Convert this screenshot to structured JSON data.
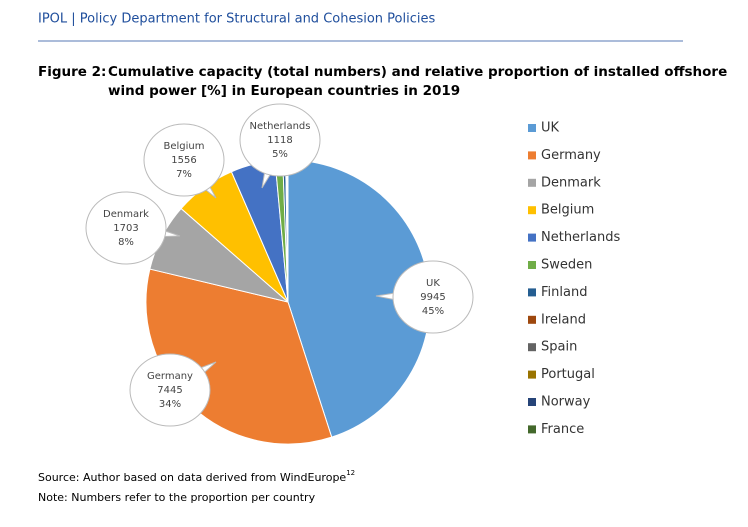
{
  "header": {
    "title": "IPOL | Policy Department for Structural and Cohesion Policies"
  },
  "figure": {
    "label": "Figure 2:",
    "title_lines": [
      "Cumulative capacity (total numbers) and relative proportion of installed offshore",
      "wind power [%] in European countries in 2019"
    ]
  },
  "chart_data": {
    "type": "pie",
    "categories": [
      "UK",
      "Germany",
      "Denmark",
      "Belgium",
      "Netherlands",
      "Sweden",
      "Finland",
      "Ireland",
      "Spain",
      "Portugal",
      "Norway",
      "France"
    ],
    "values": [
      9945,
      7445,
      1703,
      1556,
      1118,
      192,
      71,
      25,
      5,
      25,
      2,
      2
    ],
    "percent_labels": [
      "45%",
      "34%",
      "8%",
      "7%",
      "5%",
      null,
      null,
      null,
      null,
      null,
      null,
      null
    ],
    "colors": [
      "#5b9bd5",
      "#ed7d31",
      "#a5a5a5",
      "#ffc000",
      "#4472c4",
      "#70ad47",
      "#255e91",
      "#9e480e",
      "#636363",
      "#997300",
      "#264478",
      "#43682b"
    ],
    "legend": "right"
  },
  "notes": {
    "source": "Source: Author based on data derived from WindEurope",
    "source_ref": "12",
    "note": "Note: Numbers refer to the proportion per country"
  }
}
